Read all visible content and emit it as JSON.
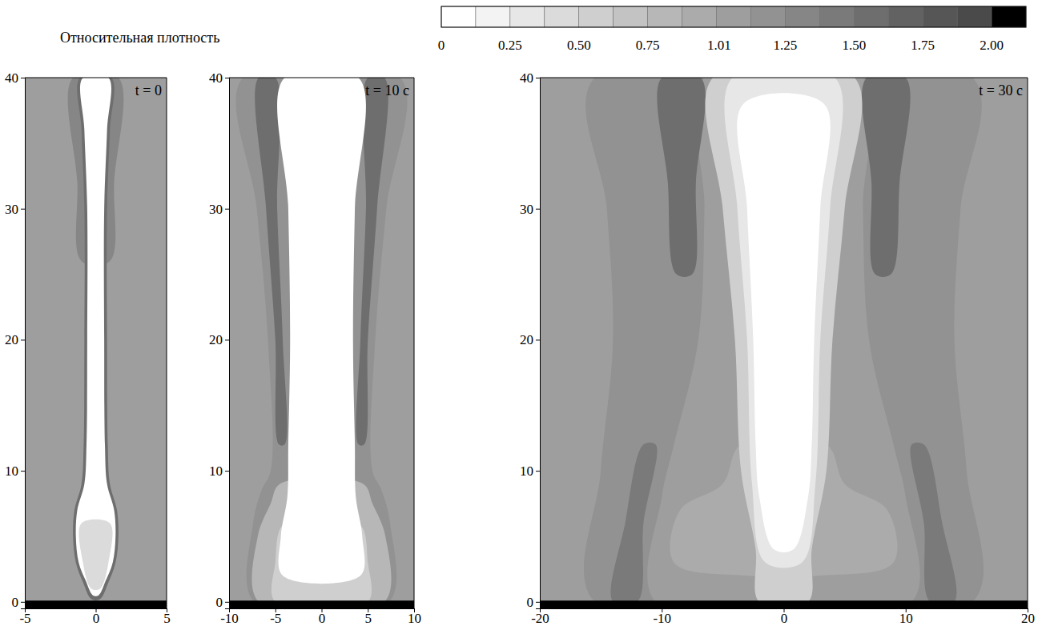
{
  "chart_data": {
    "type": "heatmap",
    "colorbar": {
      "title": "Относительная плотность",
      "range": [
        0,
        2.125
      ],
      "levels": [
        0,
        0.125,
        0.25,
        0.375,
        0.5,
        0.625,
        0.75,
        0.875,
        1.0,
        1.125,
        1.25,
        1.375,
        1.5,
        1.625,
        1.75,
        1.875,
        2.0,
        2.125
      ],
      "ticks": [
        0,
        0.25,
        {
          "value": 0.5,
          "label": "0.50"
        },
        0.75,
        1.01,
        1.25,
        {
          "value": 1.5,
          "label": "1.50"
        },
        1.75,
        {
          "value": 2,
          "label": "2.00"
        }
      ]
    },
    "panels": [
      {
        "title": "t = 0",
        "xlim": [
          -5,
          5
        ],
        "ylim": [
          -0.5,
          40
        ],
        "xticks": [
          -5,
          0,
          5
        ],
        "yticks": [
          0,
          10,
          20,
          30,
          40
        ],
        "background": 1.05,
        "regions": [
          {
            "level": 1.3,
            "points": [
              [
                -1.6,
                40
              ],
              [
                -1.3,
                32
              ],
              [
                -1.0,
                26
              ],
              [
                1.0,
                26
              ],
              [
                1.3,
                32
              ],
              [
                1.6,
                40
              ]
            ]
          },
          {
            "level": 1.6,
            "points": [
              [
                -0.3,
                0.2
              ],
              [
                -0.9,
                1.5
              ],
              [
                -1.4,
                3
              ],
              [
                -1.6,
                5
              ],
              [
                -1.5,
                7
              ],
              [
                -1.0,
                9
              ],
              [
                -0.85,
                12
              ],
              [
                -0.8,
                20
              ],
              [
                -0.8,
                30
              ],
              [
                -1.0,
                36
              ],
              [
                -1.1,
                40
              ],
              [
                1.1,
                40
              ],
              [
                1.0,
                36
              ],
              [
                0.8,
                30
              ],
              [
                0.8,
                20
              ],
              [
                0.85,
                12
              ],
              [
                1.0,
                9
              ],
              [
                1.5,
                7
              ],
              [
                1.6,
                5
              ],
              [
                1.4,
                3
              ],
              [
                0.9,
                1.5
              ],
              [
                0.3,
                0.2
              ]
            ]
          },
          {
            "level": 0.05,
            "points": [
              [
                -0.2,
                0.5
              ],
              [
                -0.7,
                1.6
              ],
              [
                -1.2,
                3
              ],
              [
                -1.4,
                5
              ],
              [
                -1.3,
                7
              ],
              [
                -0.8,
                9
              ],
              [
                -0.65,
                12
              ],
              [
                -0.6,
                20
              ],
              [
                -0.6,
                30
              ],
              [
                -0.8,
                36
              ],
              [
                -0.9,
                40
              ],
              [
                0.9,
                40
              ],
              [
                0.8,
                36
              ],
              [
                0.6,
                30
              ],
              [
                0.6,
                20
              ],
              [
                0.65,
                12
              ],
              [
                0.8,
                9
              ],
              [
                1.3,
                7
              ],
              [
                1.4,
                5
              ],
              [
                1.2,
                3
              ],
              [
                0.7,
                1.6
              ],
              [
                0.2,
                0.5
              ]
            ]
          },
          {
            "level": 0.4,
            "points": [
              [
                -0.3,
                1
              ],
              [
                -0.9,
                3
              ],
              [
                -1.0,
                6
              ],
              [
                1.0,
                6
              ],
              [
                0.9,
                3
              ],
              [
                0.3,
                1
              ]
            ]
          },
          {
            "level": 2.1,
            "points": [
              [
                -5,
                -0.5
              ],
              [
                -5,
                0.1
              ],
              [
                5,
                0.1
              ],
              [
                5,
                -0.5
              ]
            ]
          }
        ]
      },
      {
        "title": "t = 10 с",
        "xlim": [
          -10,
          10
        ],
        "ylim": [
          -0.5,
          40
        ],
        "xticks": [
          -10,
          -5,
          0,
          5,
          10
        ],
        "yticks": [
          0,
          10,
          20,
          30,
          40
        ],
        "background": 1.05,
        "regions": [
          {
            "level": 1.2,
            "points": [
              [
                -7.3,
                0
              ],
              [
                -7.4,
                6
              ],
              [
                -6.5,
                8.5
              ],
              [
                -5.5,
                10
              ],
              [
                -5.8,
                20
              ],
              [
                -7,
                30
              ],
              [
                -8.5,
                40
              ],
              [
                8.5,
                40
              ],
              [
                7,
                30
              ],
              [
                5.8,
                20
              ],
              [
                5.5,
                10
              ],
              [
                6.5,
                8.5
              ],
              [
                7.4,
                6
              ],
              [
                7.3,
                0
              ]
            ]
          },
          {
            "level": 1.5,
            "points": [
              [
                -6.8,
                40
              ],
              [
                -6,
                30
              ],
              [
                -5,
                20
              ],
              [
                -4.6,
                12
              ],
              [
                -4.0,
                12
              ],
              [
                -4.2,
                20
              ],
              [
                -4.8,
                30
              ],
              [
                -5,
                40
              ]
            ]
          },
          {
            "level": 1.5,
            "points": [
              [
                6.8,
                40
              ],
              [
                6,
                30
              ],
              [
                5,
                20
              ],
              [
                4.6,
                12
              ],
              [
                4.0,
                12
              ],
              [
                4.2,
                20
              ],
              [
                4.8,
                30
              ],
              [
                5,
                40
              ]
            ]
          },
          {
            "level": 0.75,
            "points": [
              [
                -6.8,
                0
              ],
              [
                -6.9,
                5
              ],
              [
                -5.5,
                7.5
              ],
              [
                -4.5,
                9
              ],
              [
                4.5,
                9
              ],
              [
                5.5,
                7.5
              ],
              [
                6.9,
                5
              ],
              [
                6.8,
                0
              ]
            ]
          },
          {
            "level": 0.5,
            "points": [
              [
                -5,
                0
              ],
              [
                -5,
                3
              ],
              [
                -4,
                6
              ],
              [
                4,
                6
              ],
              [
                5,
                3
              ],
              [
                5,
                0
              ]
            ]
          },
          {
            "level": 0.05,
            "points": [
              [
                -4.2,
                2
              ],
              [
                -4.4,
                5
              ],
              [
                -3.7,
                8
              ],
              [
                -3.6,
                12
              ],
              [
                -3.4,
                20
              ],
              [
                -3.6,
                30
              ],
              [
                -4,
                40
              ],
              [
                4,
                40
              ],
              [
                3.6,
                30
              ],
              [
                3.4,
                20
              ],
              [
                3.6,
                12
              ],
              [
                3.7,
                8
              ],
              [
                4.4,
                5
              ],
              [
                4.2,
                2
              ]
            ]
          },
          {
            "level": 2.1,
            "points": [
              [
                -10,
                -0.5
              ],
              [
                -10,
                0.1
              ],
              [
                10,
                0.1
              ],
              [
                10,
                -0.5
              ]
            ]
          }
        ]
      },
      {
        "title": "t = 30 с",
        "xlim": [
          -20,
          20
        ],
        "ylim": [
          -0.5,
          40
        ],
        "xticks": [
          -20,
          -10,
          0,
          10,
          20
        ],
        "yticks": [
          0,
          10,
          20,
          30,
          40
        ],
        "background": 1.05,
        "regions": [
          {
            "level": 1.2,
            "points": [
              [
                -15.5,
                0
              ],
              [
                -15,
                10
              ],
              [
                -14,
                20
              ],
              [
                -14.5,
                30
              ],
              [
                -15.5,
                40
              ],
              [
                15.5,
                40
              ],
              [
                14.5,
                30
              ],
              [
                14,
                20
              ],
              [
                15,
                10
              ],
              [
                15.5,
                0
              ]
            ]
          },
          {
            "level": 1.05,
            "points": [
              [
                -10.5,
                0
              ],
              [
                -10,
                8
              ],
              [
                -9,
                12
              ],
              [
                -7,
                20
              ],
              [
                -6.5,
                30
              ],
              [
                -6.5,
                40
              ],
              [
                6.5,
                40
              ],
              [
                6.5,
                30
              ],
              [
                7,
                20
              ],
              [
                9,
                12
              ],
              [
                10,
                8
              ],
              [
                10.5,
                0
              ]
            ]
          },
          {
            "level": 1.6,
            "points": [
              [
                -10,
                40
              ],
              [
                -9.5,
                32
              ],
              [
                -8.8,
                25
              ],
              [
                -7.5,
                25
              ],
              [
                -7.2,
                32
              ],
              [
                -6.8,
                40
              ]
            ]
          },
          {
            "level": 1.6,
            "points": [
              [
                10,
                40
              ],
              [
                9.5,
                32
              ],
              [
                8.8,
                25
              ],
              [
                7.5,
                25
              ],
              [
                7.2,
                32
              ],
              [
                6.8,
                40
              ]
            ]
          },
          {
            "level": 1.4,
            "points": [
              [
                -14,
                0
              ],
              [
                -13,
                6
              ],
              [
                -11.5,
                12
              ],
              [
                -10.5,
                12
              ],
              [
                -11.5,
                6
              ],
              [
                -12,
                0
              ]
            ]
          },
          {
            "level": 1.4,
            "points": [
              [
                14,
                0
              ],
              [
                13,
                6
              ],
              [
                11.5,
                12
              ],
              [
                10.5,
                12
              ],
              [
                11.5,
                6
              ],
              [
                12,
                0
              ]
            ]
          },
          {
            "level": 0.9,
            "points": [
              [
                -9,
                3
              ],
              [
                -8.5,
                7
              ],
              [
                -5,
                9
              ],
              [
                -3.5,
                12
              ],
              [
                3.5,
                12
              ],
              [
                5,
                9
              ],
              [
                8.5,
                7
              ],
              [
                9,
                3
              ],
              [
                3,
                2
              ],
              [
                -3,
                2
              ]
            ]
          },
          {
            "level": 0.6,
            "points": [
              [
                -2,
                0
              ],
              [
                -2.3,
                4
              ],
              [
                -3.5,
                10
              ],
              [
                -4,
                20
              ],
              [
                -5,
                30
              ],
              [
                -5.8,
                40
              ],
              [
                5.8,
                40
              ],
              [
                5,
                30
              ],
              [
                4,
                20
              ],
              [
                3.5,
                10
              ],
              [
                2.3,
                4
              ],
              [
                2,
                0
              ]
            ]
          },
          {
            "level": 0.3,
            "points": [
              [
                -1.5,
                3
              ],
              [
                -2.6,
                9
              ],
              [
                -3,
                20
              ],
              [
                -3.8,
                30
              ],
              [
                -4.2,
                40
              ],
              [
                4.2,
                40
              ],
              [
                3.8,
                30
              ],
              [
                3,
                20
              ],
              [
                2.6,
                9
              ],
              [
                1.5,
                3
              ]
            ]
          },
          {
            "level": 0.05,
            "points": [
              [
                -0.8,
                4
              ],
              [
                -2,
                8
              ],
              [
                -2.3,
                12
              ],
              [
                -2.5,
                20
              ],
              [
                -3,
                30
              ],
              [
                -3.3,
                38
              ],
              [
                3.3,
                38
              ],
              [
                3,
                30
              ],
              [
                2.5,
                20
              ],
              [
                2.3,
                12
              ],
              [
                2,
                8
              ],
              [
                0.8,
                4
              ]
            ]
          },
          {
            "level": 2.1,
            "points": [
              [
                -20,
                -0.5
              ],
              [
                -20,
                0.1
              ],
              [
                20,
                0.1
              ],
              [
                20,
                -0.5
              ]
            ]
          }
        ]
      }
    ]
  }
}
